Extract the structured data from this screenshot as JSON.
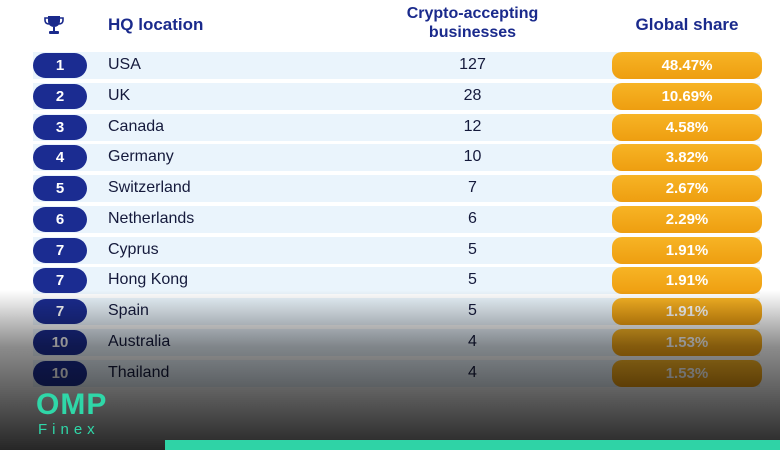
{
  "header": {
    "trophy_icon": "trophy-icon",
    "location_label": "HQ location",
    "businesses_label_line1": "Crypto-accepting",
    "businesses_label_line2": "businesses",
    "share_label": "Global share"
  },
  "rows": [
    {
      "rank": "1",
      "country": "USA",
      "count": "127",
      "share": "48.47%"
    },
    {
      "rank": "2",
      "country": "UK",
      "count": "28",
      "share": "10.69%"
    },
    {
      "rank": "3",
      "country": "Canada",
      "count": "12",
      "share": "4.58%"
    },
    {
      "rank": "4",
      "country": "Germany",
      "count": "10",
      "share": "3.82%"
    },
    {
      "rank": "5",
      "country": "Switzerland",
      "count": "7",
      "share": "2.67%"
    },
    {
      "rank": "6",
      "country": "Netherlands",
      "count": "6",
      "share": "2.29%"
    },
    {
      "rank": "7",
      "country": "Cyprus",
      "count": "5",
      "share": "1.91%"
    },
    {
      "rank": "7",
      "country": "Hong Kong",
      "count": "5",
      "share": "1.91%"
    },
    {
      "rank": "7",
      "country": "Spain",
      "count": "5",
      "share": "1.91%"
    },
    {
      "rank": "10",
      "country": "Australia",
      "count": "4",
      "share": "1.53%"
    },
    {
      "rank": "10",
      "country": "Thailand",
      "count": "4",
      "share": "1.53%"
    }
  ],
  "logo": {
    "main": "OMP",
    "sub": "Finex"
  },
  "colors": {
    "header_text": "#1a2a8c",
    "rank_badge": "#1b2c91",
    "share_pill": "#f2a81a",
    "row_background": "#eaf4fc",
    "logo": "#2fd7a8",
    "accent_bar": "#2fd3a6"
  }
}
